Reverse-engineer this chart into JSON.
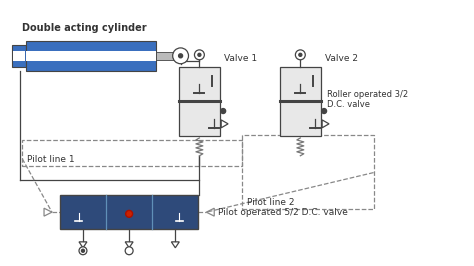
{
  "title": "Double acting cylinder",
  "bg_color": "#ffffff",
  "label_valve1": "Valve 1",
  "label_valve2": "Valve 2",
  "label_pilot1": "Pilot line 1",
  "label_pilot2": "Pilot line 2",
  "label_roller": "Roller operated 3/2\nD.C. valve",
  "label_pilot_valve": "Pilot operated 5/2 D.C. valve",
  "blue_cyl": "#3a6fbe",
  "line_color": "#444444",
  "dashed_color": "#888888",
  "spring_color": "#777777",
  "text_color": "#333333",
  "white": "#ffffff",
  "valve_bg": "#e8e8e8",
  "main_valve_bg": "#2e4a7a",
  "main_valve_line": "#6090b8",
  "red_dot": "#cc2200"
}
